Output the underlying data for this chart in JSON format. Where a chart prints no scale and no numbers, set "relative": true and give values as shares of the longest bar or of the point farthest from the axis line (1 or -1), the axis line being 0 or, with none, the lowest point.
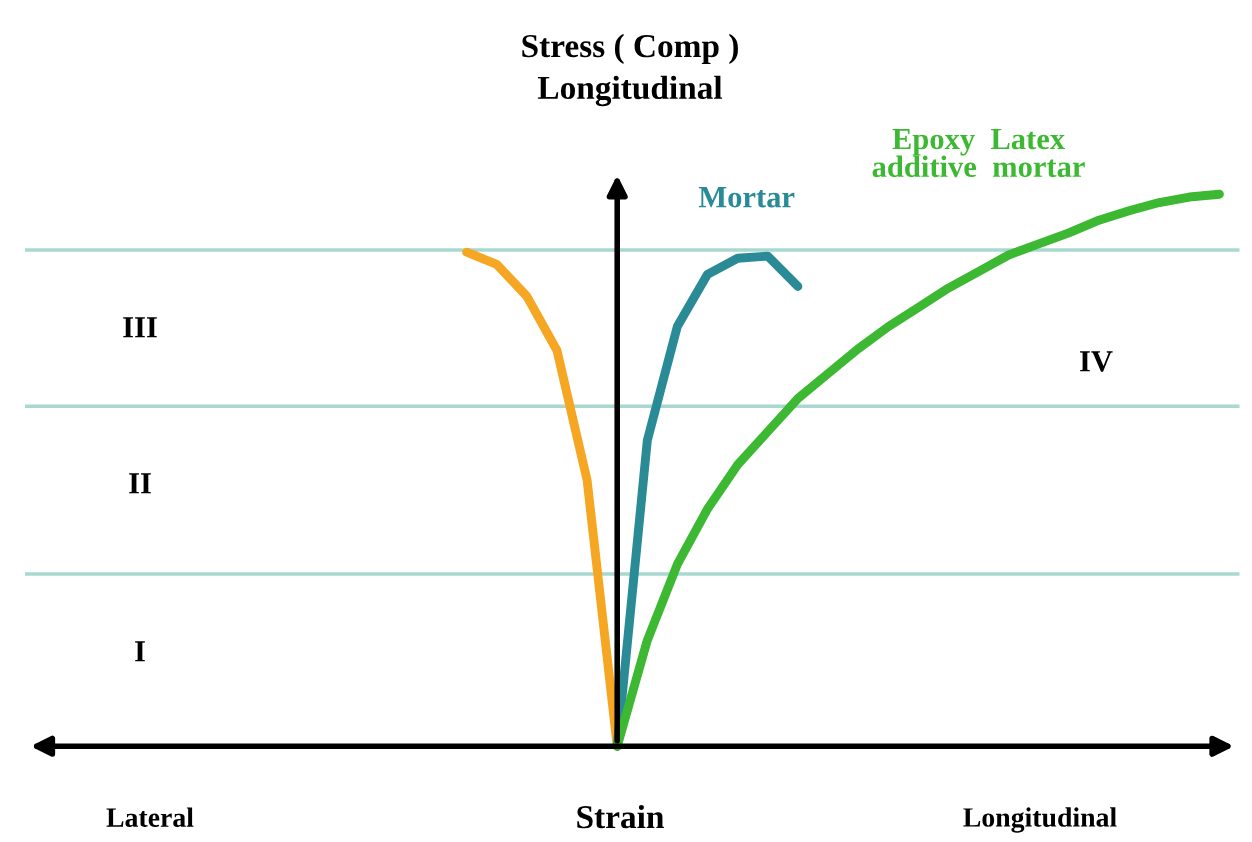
{
  "chart_data": {
    "type": "line",
    "relative": true,
    "ylabel": "Stress ( Comp )\nLongitudinal",
    "xlabel": "Strain",
    "categories": [
      null,
      null,
      null,
      null,
      null,
      null,
      null,
      null,
      null,
      null,
      null,
      null,
      null,
      null,
      null,
      null,
      null,
      null,
      null,
      null,
      null,
      null,
      null,
      null,
      null,
      null
    ],
    "series": [
      {
        "color": "#f5a623",
        "values": [
          0.895,
          0.873,
          0.815,
          0.717,
          0.482,
          0,
          null,
          null,
          null,
          null,
          null,
          null,
          null,
          null,
          null,
          null,
          null,
          null,
          null,
          null,
          null,
          null,
          null,
          null,
          null,
          null
        ]
      },
      {
        "name": "Mortar",
        "color": "#2a8a96",
        "values": [
          null,
          null,
          null,
          null,
          null,
          0,
          0.554,
          0.761,
          0.855,
          0.884,
          0.888,
          0.833,
          null,
          null,
          null,
          null,
          null,
          null,
          null,
          null,
          null,
          null,
          null,
          null,
          null,
          null
        ]
      },
      {
        "name": "Epoxy  Latex\nadditive  mortar",
        "color": "#3cb832",
        "values": [
          null,
          null,
          null,
          null,
          null,
          0,
          0.192,
          0.33,
          0.43,
          0.51,
          0.57,
          0.63,
          0.675,
          0.72,
          0.76,
          0.795,
          0.83,
          0.86,
          0.89,
          0.91,
          0.93,
          0.953,
          0.97,
          0.985,
          0.995,
          1.0
        ]
      }
    ],
    "ref_lines": [
      {
        "axis": "y",
        "value": 0.899,
        "color": "#a8d8d0"
      },
      {
        "axis": "y",
        "value": 0.616,
        "color": "#a8d8d0"
      },
      {
        "axis": "y",
        "value": 0.312,
        "color": "#a8d8d0"
      }
    ],
    "annotations": [
      "III",
      "II",
      "I",
      "IV",
      "Lateral",
      "Longitudinal"
    ],
    "legend": false,
    "marker": "none",
    "line_style": "solid"
  }
}
